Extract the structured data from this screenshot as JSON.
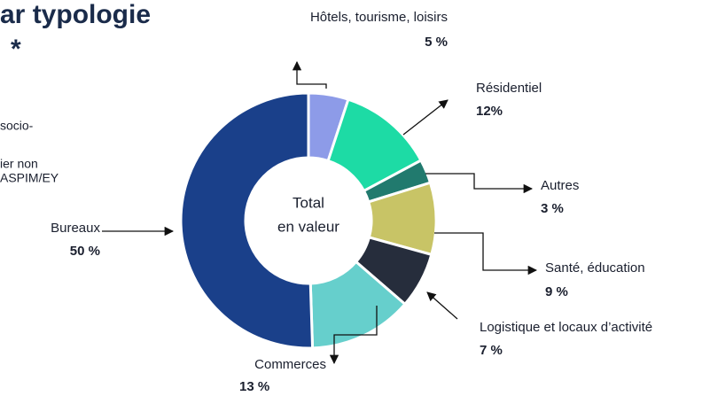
{
  "chart_data": {
    "type": "donut",
    "title": "ar typologie",
    "title_line2": "*",
    "side_texts": [
      "socio-",
      "ier non",
      "ASPIM/EY"
    ],
    "center_label": [
      "Total",
      "en valeur"
    ],
    "categories": [
      "Hôtels, tourisme, loisirs",
      "Résidentiel",
      "Autres",
      "Santé, éducation",
      "Logistique et locaux d’activité",
      "Commerces",
      "Bureaux"
    ],
    "values": [
      5,
      12,
      3,
      9,
      7,
      13,
      50
    ],
    "value_labels": [
      "5 %",
      "12%",
      "3 %",
      "9 %",
      "7 %",
      "13 %",
      "50 %"
    ],
    "colors": [
      "#8d9be8",
      "#1ddba5",
      "#217a6e",
      "#c8c466",
      "#262d3c",
      "#66cfcc",
      "#1a408a"
    ]
  }
}
